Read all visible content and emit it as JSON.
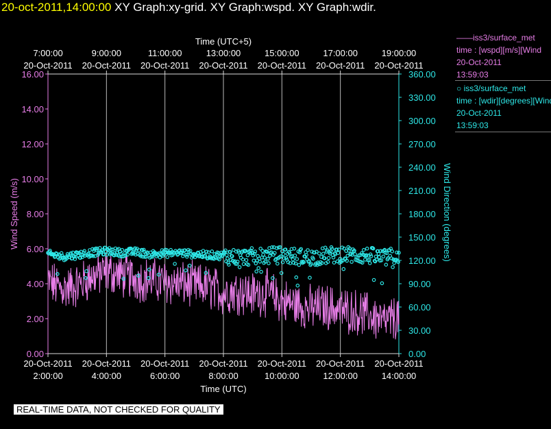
{
  "header": {
    "timestamp": "20-oct-2011,14:00:00",
    "graphs": "XY Graph:xy-grid.  XY Graph:wspd.  XY Graph:wdir."
  },
  "legend": {
    "wspd": {
      "line1": "iss3/surface_met",
      "line2": "time : [wspd][m/s][Wind",
      "line3": "20-Oct-2011",
      "line4": "13:59:03"
    },
    "wdir": {
      "line1": "iss3/surface_met",
      "line2": "time : [wdir][degrees][Wind",
      "line3": "20-Oct-2011",
      "line4": "13:59:03"
    }
  },
  "disclaimer": "REAL-TIME DATA, NOT CHECKED FOR QUALITY",
  "colors": {
    "wspd": "#e87ee8",
    "wdir": "#2ee8e8",
    "grid": "#bbbbbb",
    "frame": "#dddddd"
  },
  "chart_data": {
    "type": "line",
    "title": "",
    "grid": true,
    "x_bottom": {
      "label": "Time (UTC)",
      "ticks": [
        {
          "date": "20-Oct-2011",
          "time": "2:00:00"
        },
        {
          "date": "20-Oct-2011",
          "time": "4:00:00"
        },
        {
          "date": "20-Oct-2011",
          "time": "6:00:00"
        },
        {
          "date": "20-Oct-2011",
          "time": "8:00:00"
        },
        {
          "date": "20-Oct-2011",
          "time": "10:00:00"
        },
        {
          "date": "20-Oct-2011",
          "time": "12:00:00"
        },
        {
          "date": "20-Oct-2011",
          "time": "14:00:00"
        }
      ]
    },
    "x_top": {
      "label": "Time (UTC+5)",
      "ticks": [
        {
          "time": "7:00:00",
          "date": "20-Oct-2011"
        },
        {
          "time": "9:00:00",
          "date": "20-Oct-2011"
        },
        {
          "time": "11:00:00",
          "date": "20-Oct-2011"
        },
        {
          "time": "13:00:00",
          "date": "20-Oct-2011"
        },
        {
          "time": "15:00:00",
          "date": "20-Oct-2011"
        },
        {
          "time": "17:00:00",
          "date": "20-Oct-2011"
        },
        {
          "time": "19:00:00",
          "date": "20-Oct-2011"
        }
      ]
    },
    "xlim_hours_utc": [
      2,
      14
    ],
    "y_left": {
      "label": "Wind  Speed  (m/s)",
      "ylim": [
        0,
        16
      ],
      "ticks": [
        "0.00",
        "2.00",
        "4.00",
        "6.00",
        "8.00",
        "10.00",
        "12.00",
        "14.00",
        "16.00"
      ]
    },
    "y_right": {
      "label": "Wind  Direction  (degrees)",
      "ylim": [
        0,
        360
      ],
      "ticks": [
        "0.00",
        "30.00",
        "60.00",
        "90.00",
        "120.00",
        "150.00",
        "180.00",
        "210.00",
        "240.00",
        "270.00",
        "300.00",
        "330.00",
        "360.00"
      ]
    },
    "series": [
      {
        "name": "iss3/surface_met time : [wspd][m/s]",
        "axis": "left",
        "style": "line",
        "x_hours_utc": [
          2.0,
          2.5,
          3.0,
          3.5,
          4.0,
          4.5,
          5.0,
          5.5,
          6.0,
          6.5,
          7.0,
          7.5,
          8.0,
          8.5,
          9.0,
          9.5,
          10.0,
          10.5,
          11.0,
          11.5,
          12.0,
          12.5,
          13.0,
          13.5,
          14.0
        ],
        "values": [
          4.1,
          3.7,
          3.9,
          4.4,
          4.7,
          4.5,
          4.3,
          4.2,
          4.1,
          4.0,
          3.9,
          3.8,
          3.5,
          3.6,
          3.4,
          3.5,
          3.0,
          2.8,
          2.6,
          2.7,
          2.5,
          2.4,
          2.2,
          1.8,
          2.1
        ]
      },
      {
        "name": "iss3/surface_met time : [wdir][degrees]",
        "axis": "right",
        "style": "scatter",
        "x_hours_utc": [
          2.0,
          2.5,
          3.0,
          3.5,
          4.0,
          4.5,
          5.0,
          5.5,
          6.0,
          6.5,
          7.0,
          7.5,
          8.0,
          8.5,
          9.0,
          9.5,
          10.0,
          10.5,
          11.0,
          11.5,
          12.0,
          12.5,
          13.0,
          13.5,
          14.0
        ],
        "values": [
          128,
          125,
          127,
          130,
          132,
          130,
          131,
          128,
          129,
          130,
          128,
          127,
          126,
          124,
          125,
          126,
          127,
          125,
          124,
          126,
          128,
          127,
          126,
          123,
          127
        ]
      }
    ]
  }
}
